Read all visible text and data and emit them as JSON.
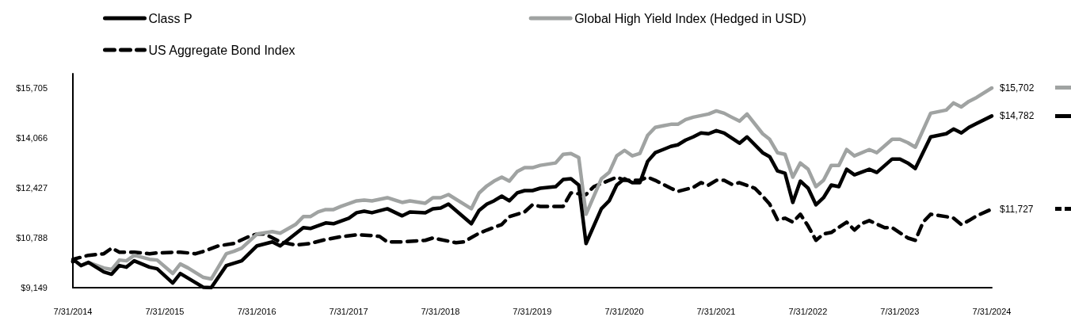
{
  "chart_data": {
    "type": "line",
    "legend": "top left",
    "grid": false,
    "xlim": [
      "2014-07-31",
      "2024-07-31"
    ],
    "xticks": [
      {
        "value": "2014-07-31",
        "label": "7/31/2014"
      },
      {
        "value": "2015-07-31",
        "label": "7/31/2015"
      },
      {
        "value": "2016-07-31",
        "label": "7/31/2016"
      },
      {
        "value": "2017-07-31",
        "label": "7/31/2017"
      },
      {
        "value": "2018-07-31",
        "label": "7/31/2018"
      },
      {
        "value": "2019-07-31",
        "label": "7/31/2019"
      },
      {
        "value": "2020-07-31",
        "label": "7/31/2020"
      },
      {
        "value": "2021-07-31",
        "label": "7/31/2021"
      },
      {
        "value": "2022-07-31",
        "label": "7/31/2022"
      },
      {
        "value": "2023-07-31",
        "label": "7/31/2023"
      },
      {
        "value": "2024-07-31",
        "label": "7/31/2024"
      }
    ],
    "ylim": [
      9149,
      16170
    ],
    "yticks": [
      {
        "value": 9149,
        "label": "$9,149"
      },
      {
        "value": 10788,
        "label": "$10,788"
      },
      {
        "value": 12427,
        "label": "$12,427"
      },
      {
        "value": 14066,
        "label": "$14,066"
      },
      {
        "value": 15705,
        "label": "$15,705"
      }
    ],
    "series": [
      {
        "name": "Class P",
        "color": "#000000",
        "line_style": "solid",
        "x": [
          "2014-07-31",
          "2014-08",
          "2014-09",
          "2014-10",
          "2014-12",
          "2015-01",
          "2015-02",
          "2015-03",
          "2015-04",
          "2015-06",
          "2015-07",
          "2015-09",
          "2015-10",
          "2016-01",
          "2016-02",
          "2016-04",
          "2016-06",
          "2016-08",
          "2016-10",
          "2016-11",
          "2017-02",
          "2017-03",
          "2017-05",
          "2017-06",
          "2017-08",
          "2017-09",
          "2017-10",
          "2017-11",
          "2018-01",
          "2018-03",
          "2018-04",
          "2018-06",
          "2018-07",
          "2018-08",
          "2018-09",
          "2018-12",
          "2019-01",
          "2019-02",
          "2019-03",
          "2019-04",
          "2019-05",
          "2019-06",
          "2019-07",
          "2019-08",
          "2019-09",
          "2019-11",
          "2019-12",
          "2020-01",
          "2020-02",
          "2020-03",
          "2020-05",
          "2020-06",
          "2020-07",
          "2020-08",
          "2020-09",
          "2020-10",
          "2020-11",
          "2020-12",
          "2021-01",
          "2021-02",
          "2021-03",
          "2021-04",
          "2021-05",
          "2021-06",
          "2021-07",
          "2021-08",
          "2021-09",
          "2021-11",
          "2021-12",
          "2022-02",
          "2022-03",
          "2022-04",
          "2022-05",
          "2022-06",
          "2022-07",
          "2022-08",
          "2022-09",
          "2022-10",
          "2022-11",
          "2022-12",
          "2023-01",
          "2023-02",
          "2023-04",
          "2023-05",
          "2023-07",
          "2023-08",
          "2023-09",
          "2023-10",
          "2023-12",
          "2024-02",
          "2024-03",
          "2024-04",
          "2024-05",
          "2024-06",
          "2024-07-31"
        ],
        "values": [
          10000,
          10081,
          9874,
          9978,
          9667,
          9589,
          9874,
          9822,
          10030,
          9822,
          9770,
          9304,
          9615,
          9160,
          9149,
          9874,
          10030,
          10522,
          10651,
          10522,
          11117,
          11091,
          11273,
          11247,
          11428,
          11609,
          11660,
          11609,
          11739,
          11506,
          11635,
          11609,
          11739,
          11765,
          11894,
          11247,
          11687,
          11894,
          11998,
          12153,
          11998,
          12257,
          12335,
          12335,
          12412,
          12464,
          12697,
          12723,
          12516,
          10599,
          11739,
          11998,
          12516,
          12723,
          12594,
          12594,
          13293,
          13578,
          13681,
          13785,
          13837,
          13992,
          14096,
          14225,
          14200,
          14303,
          14225,
          13889,
          14096,
          13578,
          13448,
          12982,
          12904,
          11946,
          12646,
          12412,
          11868,
          12101,
          12516,
          12464,
          13034,
          12853,
          13034,
          12930,
          13371,
          13371,
          13241,
          13060,
          14096,
          14200,
          14355,
          14225,
          14407,
          14536,
          14782
        ],
        "value_labels": [
          null,
          null,
          null,
          null,
          null,
          null,
          null,
          null,
          null,
          null,
          null,
          null,
          null,
          null,
          null,
          null,
          null,
          null,
          null,
          null,
          null,
          null,
          null,
          null,
          null,
          null,
          null,
          null,
          null,
          null,
          null,
          null,
          null,
          null,
          null,
          null,
          null,
          null,
          null,
          null,
          null,
          null,
          null,
          null,
          null,
          null,
          null,
          null,
          null,
          null,
          null,
          null,
          null,
          null,
          null,
          null,
          null,
          null,
          null,
          null,
          null,
          null,
          null,
          null,
          null,
          null,
          null,
          null,
          null,
          null,
          null,
          null,
          null,
          null,
          null,
          null,
          null,
          null,
          null,
          null,
          null,
          null,
          null,
          null,
          null,
          null,
          null,
          null,
          null,
          null,
          null,
          null,
          null,
          null,
          "$14,782"
        ]
      },
      {
        "name": "Global High Yield Index (Hedged in USD)",
        "color": "#a0a3a2",
        "line_style": "solid",
        "x": [
          "2014-10",
          "2014-12",
          "2015-01",
          "2015-02",
          "2015-03",
          "2015-04",
          "2015-06",
          "2015-07",
          "2015-09",
          "2015-10",
          "2015-11",
          "2016-01",
          "2016-02",
          "2016-04",
          "2016-05",
          "2016-06",
          "2016-08",
          "2016-10",
          "2016-11",
          "2017-01",
          "2017-02",
          "2017-03",
          "2017-04",
          "2017-05",
          "2017-06",
          "2017-07",
          "2017-09",
          "2017-10",
          "2017-11",
          "2018-01",
          "2018-03",
          "2018-04",
          "2018-06",
          "2018-07",
          "2018-08",
          "2018-09",
          "2018-12",
          "2019-01",
          "2019-02",
          "2019-03",
          "2019-04",
          "2019-05",
          "2019-06",
          "2019-07",
          "2019-08",
          "2019-09",
          "2019-11",
          "2019-12",
          "2020-01",
          "2020-02",
          "2020-03",
          "2020-05",
          "2020-06",
          "2020-07",
          "2020-08",
          "2020-09",
          "2020-10",
          "2020-11",
          "2020-12",
          "2021-01",
          "2021-02",
          "2021-03",
          "2021-04",
          "2021-05",
          "2021-07",
          "2021-08",
          "2021-09",
          "2021-10",
          "2021-11",
          "2021-12",
          "2022-02",
          "2022-03",
          "2022-04",
          "2022-05",
          "2022-06",
          "2022-07",
          "2022-08",
          "2022-09",
          "2022-10",
          "2022-11",
          "2022-12",
          "2023-01",
          "2023-02",
          "2023-04",
          "2023-05",
          "2023-07",
          "2023-08",
          "2023-09",
          "2023-10",
          "2023-12",
          "2024-02",
          "2024-03",
          "2024-04",
          "2024-05",
          "2024-06",
          "2024-07-31"
        ],
        "values": [
          9978,
          9796,
          9745,
          10056,
          10030,
          10211,
          10081,
          10056,
          9615,
          9926,
          9796,
          9485,
          9434,
          10263,
          10340,
          10444,
          10910,
          10988,
          10936,
          11221,
          11480,
          11480,
          11635,
          11713,
          11713,
          11816,
          11998,
          12024,
          11998,
          12101,
          11946,
          11998,
          11920,
          12101,
          12101,
          12205,
          11739,
          12257,
          12490,
          12646,
          12775,
          12646,
          12956,
          13086,
          13086,
          13163,
          13241,
          13526,
          13552,
          13422,
          11558,
          12723,
          12930,
          13474,
          13655,
          13474,
          13552,
          14148,
          14407,
          14459,
          14510,
          14510,
          14666,
          14743,
          14847,
          14950,
          14873,
          14743,
          14614,
          14847,
          14200,
          14018,
          13578,
          13526,
          12775,
          13241,
          13034,
          12464,
          12671,
          13163,
          13163,
          13681,
          13474,
          13681,
          13578,
          14018,
          14018,
          13907,
          13759,
          14873,
          14977,
          15210,
          15080,
          15262,
          15391,
          15702
        ],
        "value_labels": [
          null,
          null,
          null,
          null,
          null,
          null,
          null,
          null,
          null,
          null,
          null,
          null,
          null,
          null,
          null,
          null,
          null,
          null,
          null,
          null,
          null,
          null,
          null,
          null,
          null,
          null,
          null,
          null,
          null,
          null,
          null,
          null,
          null,
          null,
          null,
          null,
          null,
          null,
          null,
          null,
          null,
          null,
          null,
          null,
          null,
          null,
          null,
          null,
          null,
          null,
          null,
          null,
          null,
          null,
          null,
          null,
          null,
          null,
          null,
          null,
          null,
          null,
          null,
          null,
          null,
          null,
          null,
          null,
          null,
          null,
          null,
          null,
          null,
          null,
          null,
          null,
          null,
          null,
          null,
          null,
          null,
          null,
          null,
          null,
          null,
          null,
          null,
          null,
          null,
          null,
          null,
          null,
          null,
          null,
          null,
          "$15,702"
        ]
      },
      {
        "name": "US Aggregate Bond Index",
        "color": "#000000",
        "line_style": "dashed",
        "x": [
          "2014-07-31",
          "2014-08",
          "2014-10",
          "2014-12",
          "2015-01",
          "2015-02",
          "2015-04",
          "2015-06",
          "2015-07",
          "2015-10",
          "2015-12",
          "2016-01",
          "2016-03",
          "2016-05",
          "2016-07",
          "2016-08",
          "2016-09",
          "2016-11",
          "2017-01",
          "2017-03",
          "2017-05",
          "2017-07",
          "2017-09",
          "2017-11",
          "2017-12",
          "2018-01",
          "2018-03",
          "2018-06",
          "2018-07",
          "2018-10",
          "2018-11",
          "2019-01",
          "2019-02",
          "2019-04",
          "2019-05",
          "2019-07",
          "2019-08",
          "2019-09",
          "2019-12",
          "2020-01",
          "2020-03",
          "2020-04",
          "2020-07",
          "2020-08",
          "2020-10",
          "2020-11",
          "2020-12",
          "2021-02",
          "2021-03",
          "2021-05",
          "2021-06",
          "2021-07",
          "2021-08",
          "2021-09",
          "2021-10",
          "2021-11",
          "2022-01",
          "2022-02",
          "2022-03",
          "2022-04",
          "2022-05",
          "2022-06",
          "2022-07",
          "2022-08",
          "2022-09",
          "2022-10",
          "2022-11",
          "2023-01",
          "2023-02",
          "2023-03",
          "2023-04",
          "2023-06",
          "2023-07",
          "2023-09",
          "2023-10",
          "2023-11",
          "2023-12",
          "2024-02",
          "2024-03",
          "2024-04",
          "2024-05",
          "2024-06",
          "2024-07-31"
        ],
        "values": [
          10000,
          10081,
          10211,
          10263,
          10444,
          10315,
          10315,
          10263,
          10289,
          10315,
          10263,
          10340,
          10522,
          10599,
          10832,
          10910,
          10910,
          10651,
          10547,
          10599,
          10729,
          10820,
          10884,
          10858,
          10832,
          10651,
          10651,
          10703,
          10781,
          10625,
          10651,
          10936,
          11040,
          11221,
          11480,
          11635,
          11868,
          11816,
          11816,
          12257,
          12205,
          12464,
          12775,
          12671,
          12671,
          12775,
          12671,
          12412,
          12309,
          12438,
          12594,
          12516,
          12671,
          12671,
          12542,
          12594,
          12412,
          12153,
          11894,
          11376,
          11428,
          11299,
          11558,
          11169,
          10703,
          10910,
          10962,
          11299,
          11040,
          11247,
          11350,
          11117,
          11117,
          10781,
          10703,
          11299,
          11558,
          11480,
          11428,
          11221,
          11350,
          11506,
          11727
        ],
        "value_labels": [
          null,
          null,
          null,
          null,
          null,
          null,
          null,
          null,
          null,
          null,
          null,
          null,
          null,
          null,
          null,
          null,
          null,
          null,
          null,
          null,
          null,
          null,
          null,
          null,
          null,
          null,
          null,
          null,
          null,
          null,
          null,
          null,
          null,
          null,
          null,
          null,
          null,
          null,
          null,
          null,
          null,
          null,
          null,
          null,
          null,
          null,
          null,
          null,
          null,
          null,
          null,
          null,
          null,
          null,
          null,
          null,
          null,
          null,
          null,
          null,
          null,
          null,
          null,
          null,
          null,
          null,
          null,
          null,
          null,
          null,
          null,
          null,
          null,
          null,
          null,
          null,
          null,
          null,
          null,
          null,
          null,
          null,
          "$11,727"
        ]
      }
    ]
  }
}
